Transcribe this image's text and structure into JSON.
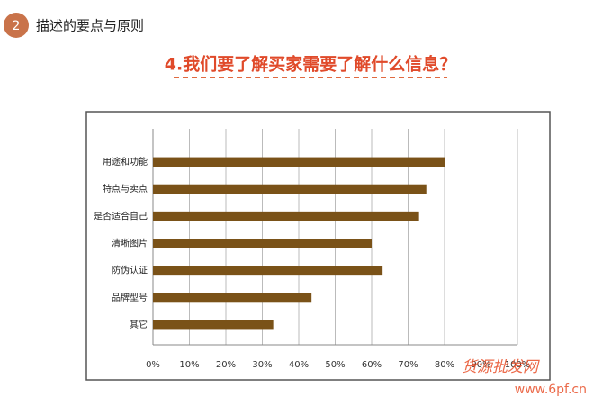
{
  "header": {
    "number": "2",
    "title": "描述的要点与原则"
  },
  "chart_data": {
    "type": "bar",
    "orientation": "horizontal",
    "title": "4.我们要了解买家需要了解什么信息？",
    "categories": [
      "用途和功能",
      "特点与卖点",
      "是否适合自己",
      "清晰图片",
      "防伪认证",
      "品牌型号",
      "其它"
    ],
    "values": [
      80,
      75,
      73,
      60,
      63,
      43.5,
      33
    ],
    "color": "#7a5218",
    "xlim": [
      0,
      100
    ],
    "xticks": [
      {
        "value": 0,
        "label": "0%"
      },
      {
        "value": 10,
        "label": "10%"
      },
      {
        "value": 20,
        "label": "20%"
      },
      {
        "value": 30,
        "label": "30%"
      },
      {
        "value": 40,
        "label": "40%"
      },
      {
        "value": 50,
        "label": "50%"
      },
      {
        "value": 60,
        "label": "60%"
      },
      {
        "value": 70,
        "label": "70%"
      },
      {
        "value": 80,
        "label": "80%"
      },
      {
        "value": 90,
        "label": "90%"
      },
      {
        "value": 100,
        "label": "100%"
      }
    ],
    "grid": true
  },
  "watermark": {
    "name": "货源批发网",
    "url": "www.6pf.cn"
  }
}
